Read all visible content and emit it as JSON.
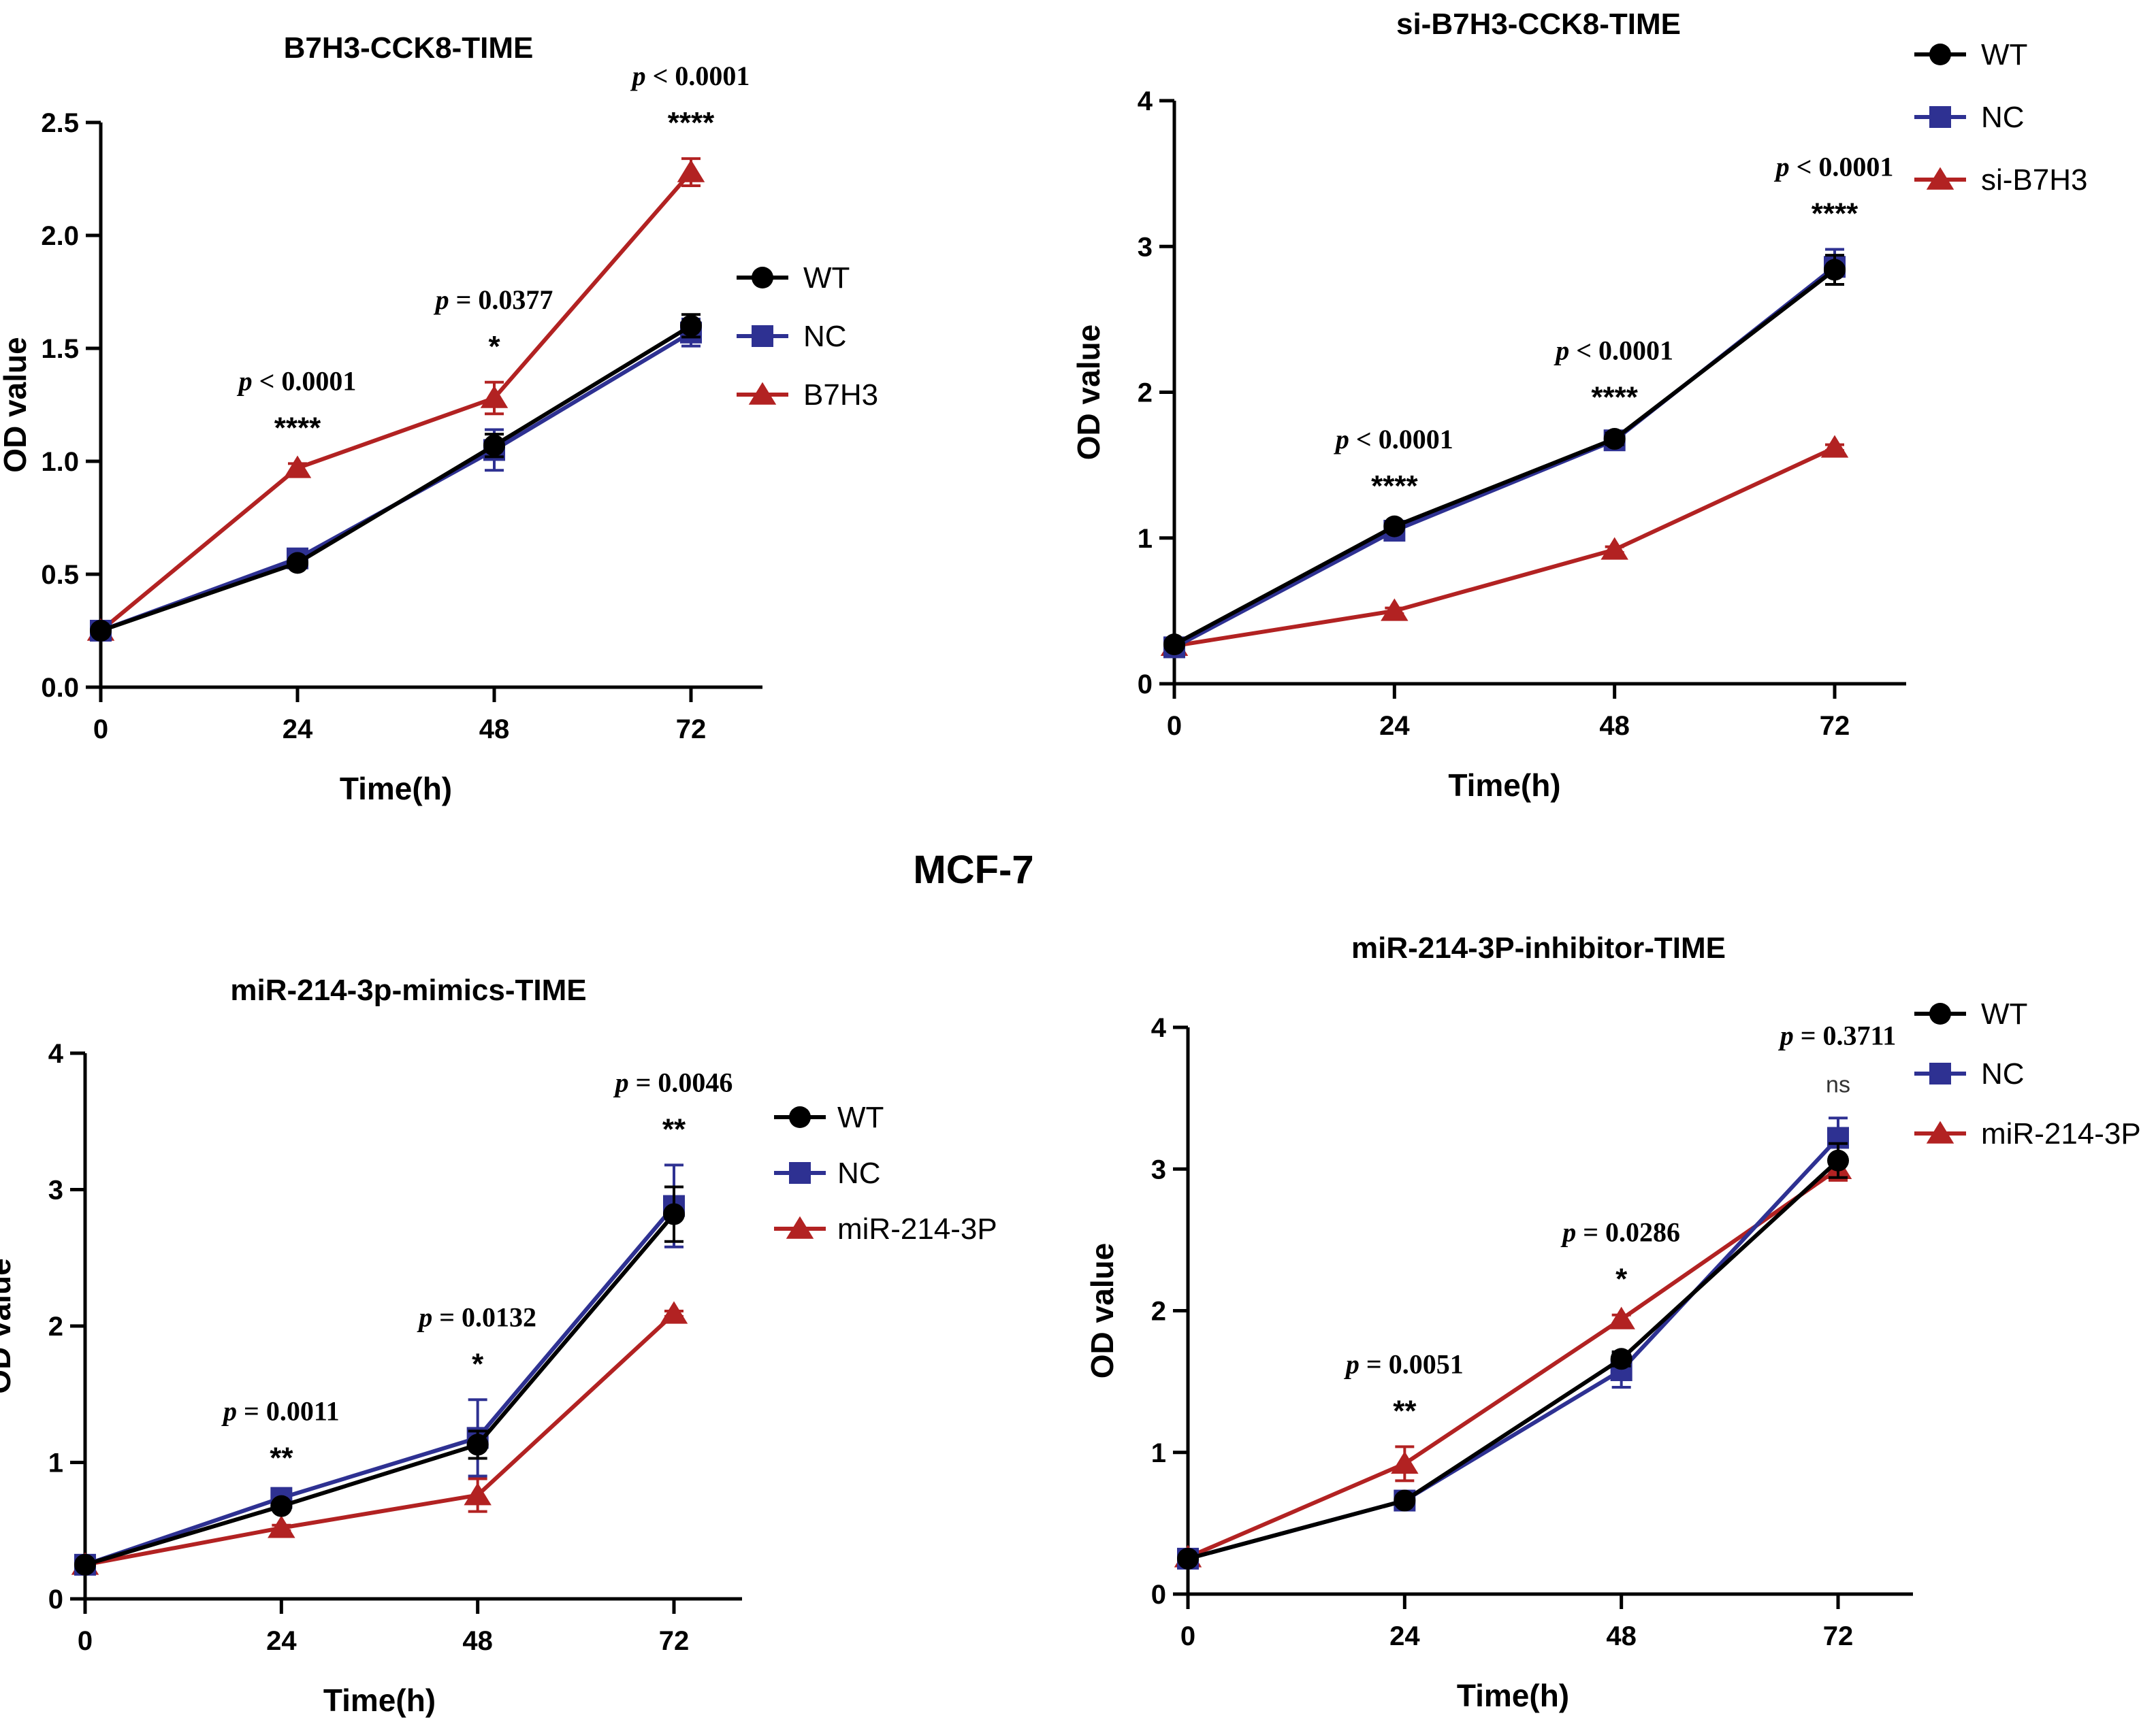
{
  "figure_title": "MCF-7",
  "colors": {
    "WT": "#000000",
    "NC": "#2e3192",
    "treatment": "#b22222"
  },
  "chart_data": [
    {
      "type": "line",
      "title": "B7H3-CCK8-TIME",
      "xlabel": "Time(h)",
      "ylabel": "OD value",
      "x": [
        0,
        24,
        48,
        72
      ],
      "xticks": [
        "0",
        "24",
        "48",
        "72"
      ],
      "ylim": [
        0,
        2.5
      ],
      "yticks": [
        "0.0",
        "0.5",
        "1.0",
        "1.5",
        "2.0",
        "2.5"
      ],
      "series": [
        {
          "name": "WT",
          "marker": "circle",
          "values": [
            0.25,
            0.55,
            1.07,
            1.6
          ],
          "errors": [
            0.01,
            0.02,
            0.05,
            0.05
          ]
        },
        {
          "name": "NC",
          "marker": "square",
          "values": [
            0.25,
            0.57,
            1.05,
            1.57
          ],
          "errors": [
            0.01,
            0.02,
            0.09,
            0.06
          ]
        },
        {
          "name": "B7H3",
          "marker": "triangle",
          "values": [
            0.25,
            0.97,
            1.28,
            2.28
          ],
          "errors": [
            0.01,
            0.02,
            0.07,
            0.06
          ]
        }
      ],
      "annotations": [
        {
          "x": 24,
          "p": "< 0.0001",
          "stars": "****"
        },
        {
          "x": 48,
          "p": "= 0.0377",
          "stars": "*"
        },
        {
          "x": 72,
          "p": "< 0.0001",
          "stars": "****"
        }
      ],
      "legend": "right"
    },
    {
      "type": "line",
      "title": "si-B7H3-CCK8-TIME",
      "xlabel": "Time(h)",
      "ylabel": "OD value",
      "x": [
        0,
        24,
        48,
        72
      ],
      "xticks": [
        "0",
        "24",
        "48",
        "72"
      ],
      "ylim": [
        0,
        4
      ],
      "yticks": [
        "0",
        "1",
        "2",
        "3",
        "4"
      ],
      "series": [
        {
          "name": "WT",
          "marker": "circle",
          "values": [
            0.27,
            1.08,
            1.68,
            2.84
          ],
          "errors": [
            0.02,
            0.03,
            0.04,
            0.1
          ]
        },
        {
          "name": "NC",
          "marker": "square",
          "values": [
            0.25,
            1.05,
            1.67,
            2.86
          ],
          "errors": [
            0.02,
            0.03,
            0.05,
            0.12
          ]
        },
        {
          "name": "si-B7H3",
          "marker": "triangle",
          "values": [
            0.26,
            0.5,
            0.92,
            1.62
          ],
          "errors": [
            0.01,
            0.02,
            0.02,
            0.02
          ]
        }
      ],
      "annotations": [
        {
          "x": 24,
          "p": "< 0.0001",
          "stars": "****"
        },
        {
          "x": 48,
          "p": "< 0.0001",
          "stars": "****"
        },
        {
          "x": 72,
          "p": "< 0.0001",
          "stars": "****"
        }
      ],
      "legend": "top-right"
    },
    {
      "type": "line",
      "title": "miR-214-3p-mimics-TIME",
      "xlabel": "Time(h)",
      "ylabel": "OD value",
      "x": [
        0,
        24,
        48,
        72
      ],
      "xticks": [
        "0",
        "24",
        "48",
        "72"
      ],
      "ylim": [
        0,
        4
      ],
      "yticks": [
        "0",
        "1",
        "2",
        "3",
        "4"
      ],
      "series": [
        {
          "name": "WT",
          "marker": "circle",
          "values": [
            0.25,
            0.68,
            1.13,
            2.82
          ],
          "errors": [
            0.01,
            0.03,
            0.1,
            0.2
          ]
        },
        {
          "name": "NC",
          "marker": "square",
          "values": [
            0.25,
            0.74,
            1.18,
            2.88
          ],
          "errors": [
            0.01,
            0.03,
            0.28,
            0.3
          ]
        },
        {
          "name": "miR-214-3P",
          "marker": "triangle",
          "values": [
            0.25,
            0.52,
            0.76,
            2.09
          ],
          "errors": [
            0.01,
            0.02,
            0.12,
            0.02
          ]
        }
      ],
      "annotations": [
        {
          "x": 24,
          "p": "= 0.0011",
          "stars": "**"
        },
        {
          "x": 48,
          "p": "= 0.0132",
          "stars": "*"
        },
        {
          "x": 72,
          "p": "= 0.0046",
          "stars": "**"
        }
      ],
      "legend": "right"
    },
    {
      "type": "line",
      "title": "miR-214-3P-inhibitor-TIME",
      "xlabel": "Time(h)",
      "ylabel": "OD value",
      "x": [
        0,
        24,
        48,
        72
      ],
      "xticks": [
        "0",
        "24",
        "48",
        "72"
      ],
      "ylim": [
        0,
        4
      ],
      "yticks": [
        "0",
        "1",
        "2",
        "3",
        "4"
      ],
      "series": [
        {
          "name": "WT",
          "marker": "circle",
          "values": [
            0.25,
            0.66,
            1.66,
            3.06
          ],
          "errors": [
            0.02,
            0.03,
            0.05,
            0.12
          ]
        },
        {
          "name": "NC",
          "marker": "square",
          "values": [
            0.25,
            0.66,
            1.58,
            3.22
          ],
          "errors": [
            0.02,
            0.03,
            0.12,
            0.14
          ]
        },
        {
          "name": "miR-214-3P",
          "marker": "triangle",
          "values": [
            0.26,
            0.92,
            1.94,
            3.0
          ],
          "errors": [
            0.01,
            0.12,
            0.03,
            0.08
          ]
        }
      ],
      "annotations": [
        {
          "x": 24,
          "p": "= 0.0051",
          "stars": "**"
        },
        {
          "x": 48,
          "p": "= 0.0286",
          "stars": "*"
        },
        {
          "x": 72,
          "p": "= 0.3711",
          "stars": "ns"
        }
      ],
      "legend": "top-right"
    }
  ]
}
